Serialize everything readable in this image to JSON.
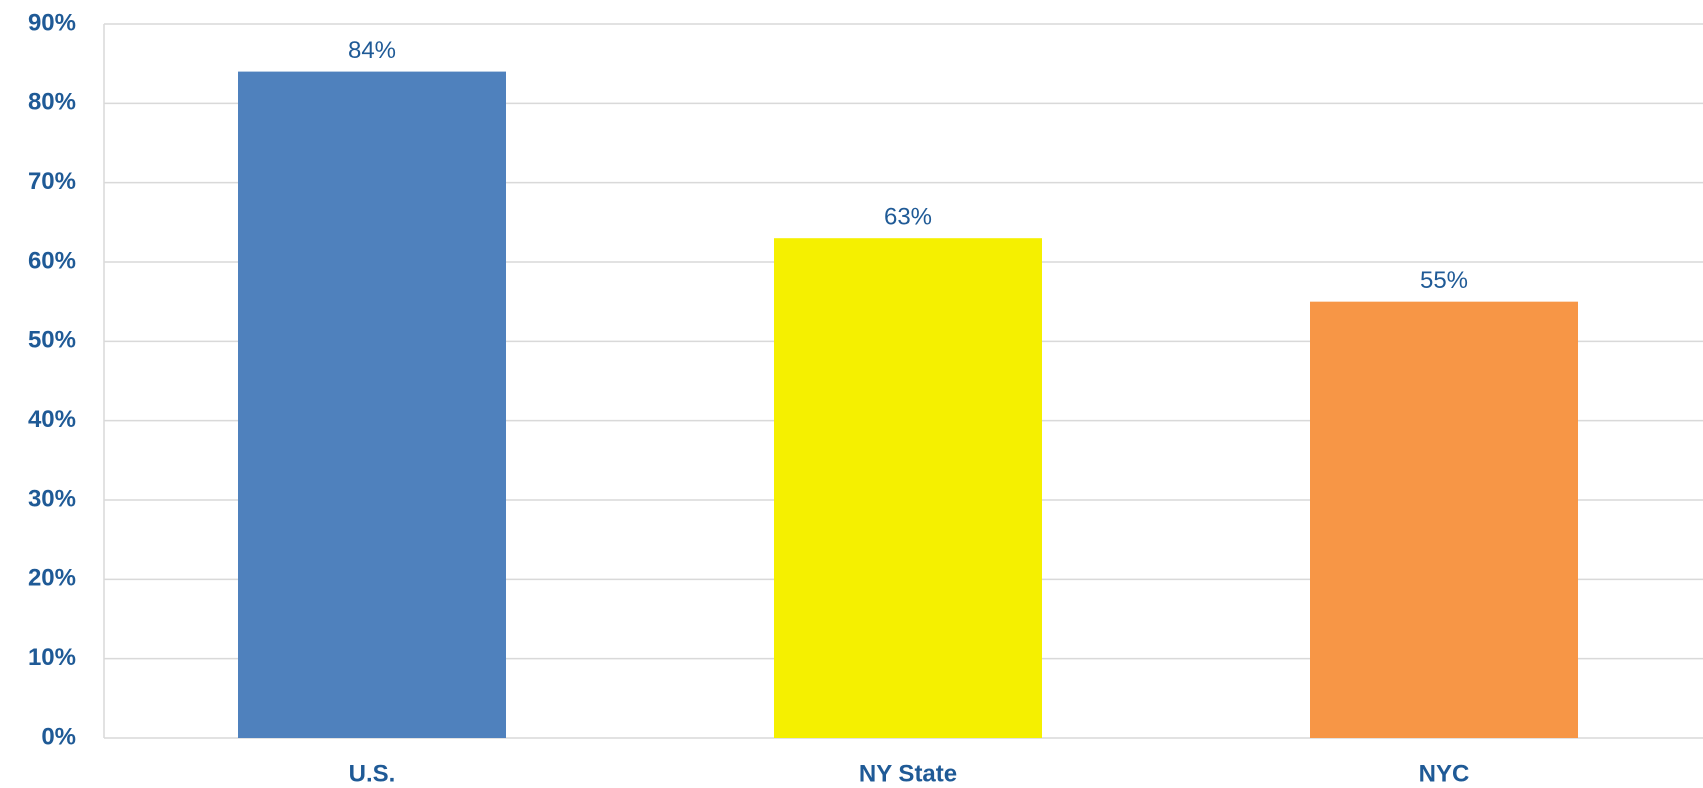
{
  "chart_data": {
    "type": "bar",
    "categories": [
      "U.S.",
      "NY State",
      "NYC"
    ],
    "values": [
      84,
      63,
      55
    ],
    "value_labels": [
      "84%",
      "63%",
      "55%"
    ],
    "colors": [
      "#4f81bd",
      "#f5f000",
      "#f79646"
    ],
    "ylim": [
      0,
      90
    ],
    "yticks": [
      {
        "value": 0,
        "label": "0%"
      },
      {
        "value": 10,
        "label": "10%"
      },
      {
        "value": 20,
        "label": "20%"
      },
      {
        "value": 30,
        "label": "30%"
      },
      {
        "value": 40,
        "label": "40%"
      },
      {
        "value": 50,
        "label": "50%"
      },
      {
        "value": 60,
        "label": "60%"
      },
      {
        "value": 70,
        "label": "70%"
      },
      {
        "value": 80,
        "label": "80%"
      },
      {
        "value": 90,
        "label": "90%"
      }
    ],
    "grid": true
  }
}
